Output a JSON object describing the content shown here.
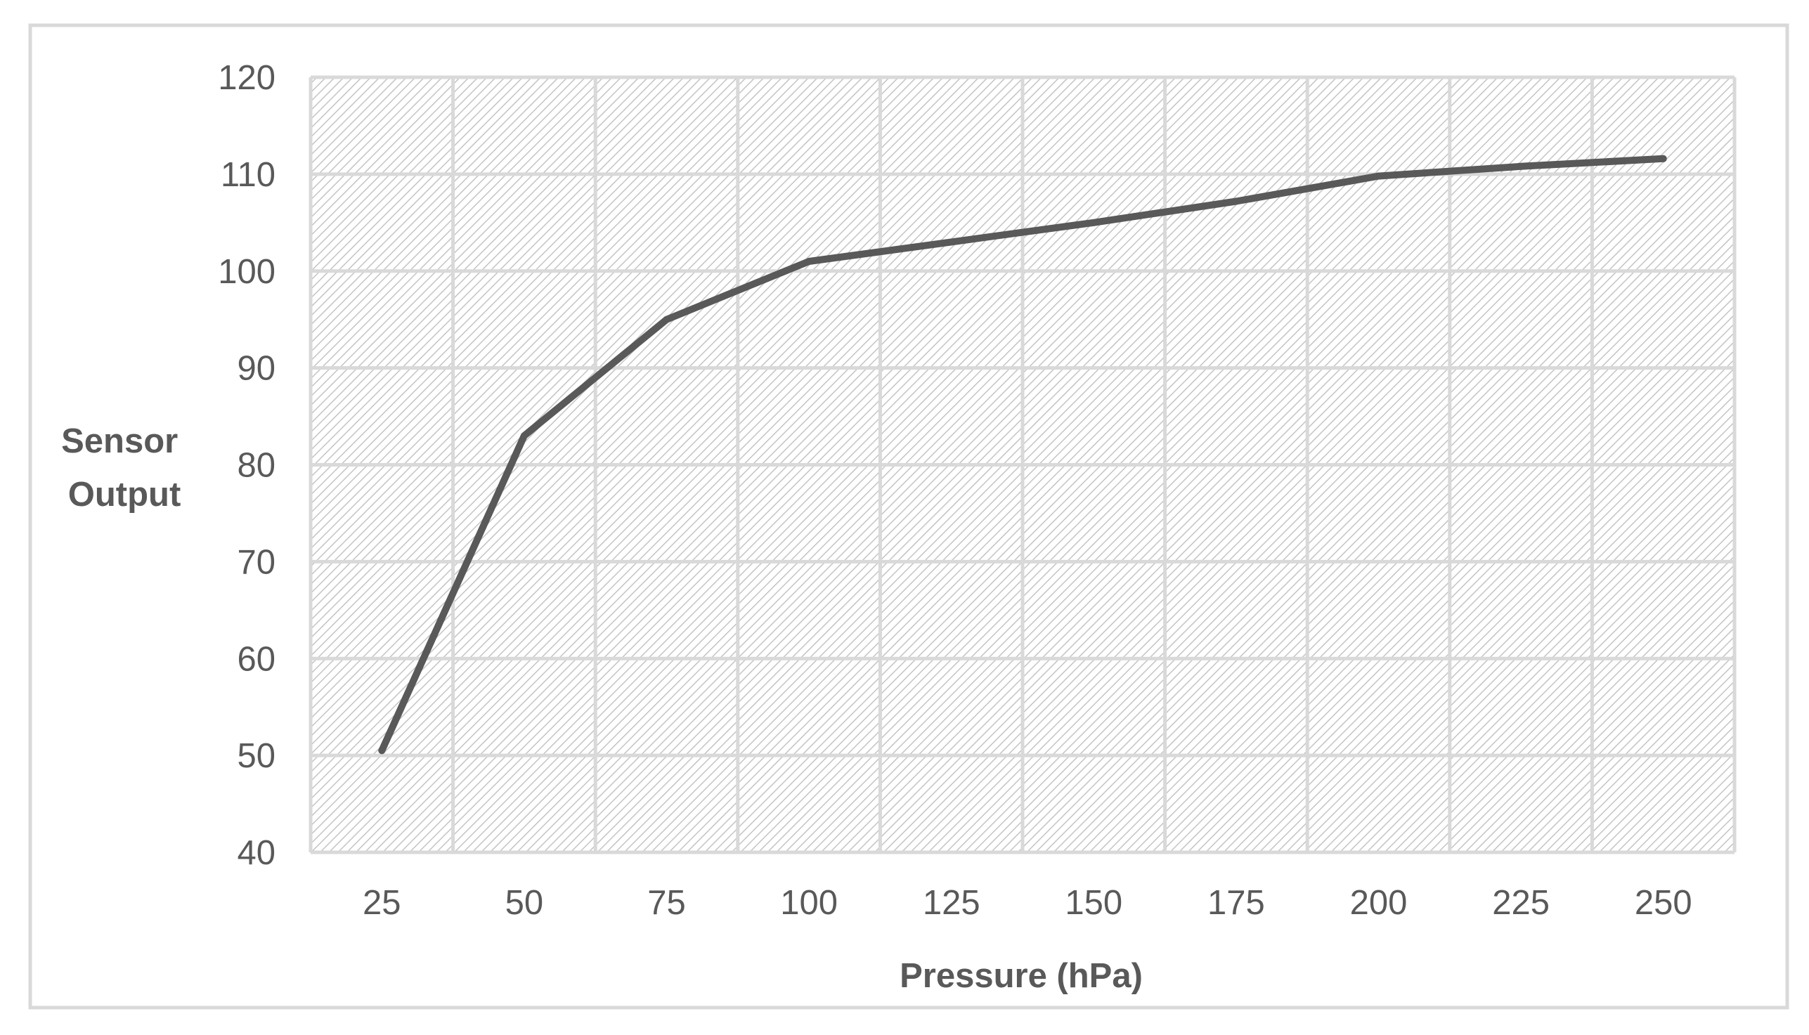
{
  "chart_data": {
    "type": "line",
    "title": "",
    "xlabel": "Pressure (hPa)",
    "ylabel_lines": [
      "Sensor",
      "Output"
    ],
    "x": [
      25,
      50,
      75,
      100,
      125,
      150,
      175,
      200,
      225,
      250
    ],
    "x_tick_labels": [
      "25",
      "50",
      "75",
      "100",
      "125",
      "150",
      "175",
      "200",
      "225",
      "250"
    ],
    "y_tick_labels": [
      "40",
      "50",
      "60",
      "70",
      "80",
      "90",
      "100",
      "110",
      "120"
    ],
    "series": [
      {
        "name": "Sensor Output",
        "values": [
          50.5,
          83,
          95,
          101,
          103,
          105,
          107.2,
          109.8,
          110.8,
          111.6
        ]
      }
    ],
    "ylim": [
      40,
      120
    ],
    "y_tick_step": 10,
    "grid": true,
    "legend": "none",
    "colors": {
      "line": "#595959",
      "grid": "#d9d9d9",
      "hatch": "#bfbfbf",
      "border": "#d9d9d9",
      "text": "#595959"
    }
  }
}
